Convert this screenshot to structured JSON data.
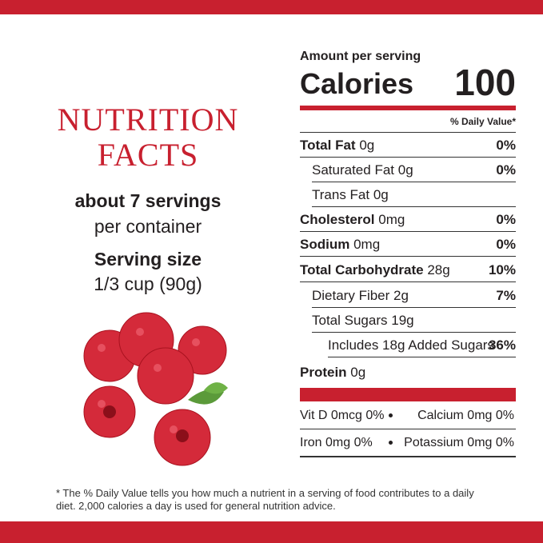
{
  "header": {
    "title_line1": "NUTRITION",
    "title_line2": "FACTS"
  },
  "servings": {
    "amount": "about 7 servings",
    "unit": "per container"
  },
  "serving_size": {
    "label": "Serving size",
    "value": "1/3 cup (90g)"
  },
  "label": {
    "amount_per_serving": "Amount per serving",
    "calories_label": "Calories",
    "calories": "100",
    "daily_value_header": "% Daily Value*",
    "rows": [
      {
        "name": "Total Fat",
        "amount": "0g",
        "dv": "0%"
      },
      {
        "name": "Saturated Fat",
        "amount": "0g",
        "dv": "0%"
      },
      {
        "name": "Trans Fat",
        "amount": "0g"
      },
      {
        "name": "Cholesterol",
        "amount": "0mg",
        "dv": "0%"
      },
      {
        "name": "Sodium",
        "amount": "0mg",
        "dv": "0%"
      },
      {
        "name": "Total Carbohydrate",
        "amount": "28g",
        "dv": "10%"
      },
      {
        "name": "Dietary Fiber",
        "amount": "2g",
        "dv": "7%"
      },
      {
        "name": "Total Sugars",
        "amount": "19g"
      },
      {
        "name": "Includes 18g Added Sugars",
        "dv": "36%"
      },
      {
        "name": "Protein",
        "amount": "0g"
      }
    ],
    "vitamins": [
      "Vit D 0mcg 0%",
      "Calcium 0mg 0%",
      "Iron 0mg 0%",
      "Potassium 0mg 0%"
    ]
  },
  "footnote": "* The % Daily Value tells you how much a nutrient in a serving of food contributes to a daily diet. 2,000 calories a day is used for general nutrition advice."
}
